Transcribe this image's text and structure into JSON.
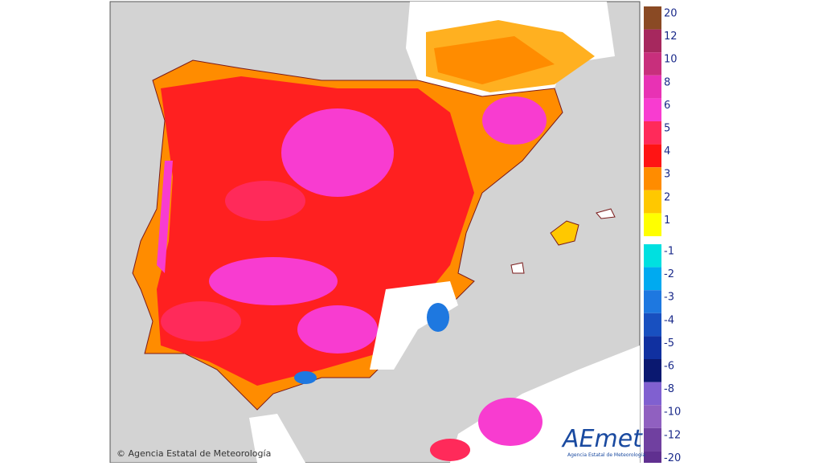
{
  "legend": {
    "entries": [
      {
        "value": 20,
        "color": "#8a4a24"
      },
      {
        "value": 12,
        "color": "#a6285e"
      },
      {
        "value": 10,
        "color": "#c82f7c"
      },
      {
        "value": 8,
        "color": "#e832b4"
      },
      {
        "value": 6,
        "color": "#f83cd0"
      },
      {
        "value": 5,
        "color": "#ff2a5a"
      },
      {
        "value": 4,
        "color": "#ff1414"
      },
      {
        "value": 3,
        "color": "#ff8c00"
      },
      {
        "value": 2,
        "color": "#ffc800"
      },
      {
        "value": 1,
        "color": "#ffff00"
      },
      {
        "value": -1,
        "color": "#00e0e0"
      },
      {
        "value": -2,
        "color": "#00aaf0"
      },
      {
        "value": -3,
        "color": "#1e78e0"
      },
      {
        "value": -4,
        "color": "#1850c0"
      },
      {
        "value": -5,
        "color": "#1030a0"
      },
      {
        "value": -6,
        "color": "#0a1870"
      },
      {
        "value": -8,
        "color": "#8060d0"
      },
      {
        "value": -10,
        "color": "#9060c0"
      },
      {
        "value": -12,
        "color": "#7040a0"
      },
      {
        "value": -20,
        "color": "#603090"
      }
    ]
  },
  "footer": {
    "copyright": "© Agencia Estatal de Meteorología"
  },
  "logo": {
    "mark": "AEmet",
    "caption": "Agencia Estatal de Meteorología"
  }
}
